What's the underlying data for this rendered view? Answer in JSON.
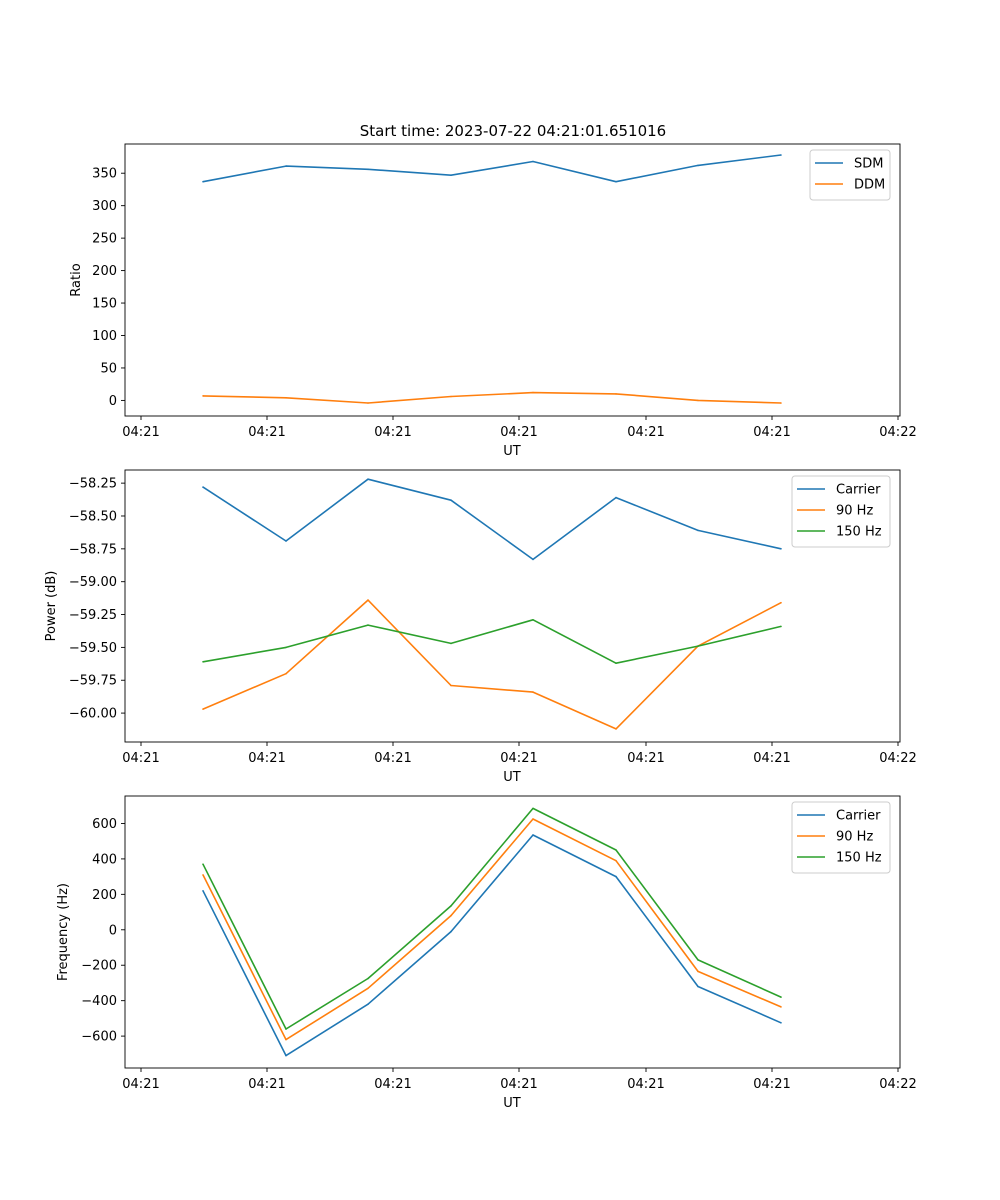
{
  "figure_title": "Start time: 2023-07-22 04:21:01.651016",
  "colors": {
    "blue": "#1f77b4",
    "orange": "#ff7f0e",
    "green": "#2ca02c"
  },
  "chart_data": [
    {
      "type": "line",
      "title": "Start time: 2023-07-22 04:21:01.651016",
      "xlabel": "UT",
      "ylabel": "Ratio",
      "x_tick_labels": [
        "04:21",
        "04:21",
        "04:21",
        "04:21",
        "04:21",
        "04:21",
        "04:22"
      ],
      "y_ticks": [
        0,
        50,
        100,
        150,
        200,
        250,
        300,
        350
      ],
      "y_tick_labels": [
        "0",
        "50",
        "100",
        "150",
        "200",
        "250",
        "300",
        "350"
      ],
      "ylim": [
        -24,
        395
      ],
      "legend_position": "top-right",
      "series": [
        {
          "name": "SDM",
          "color": "#1f77b4",
          "values": [
            337,
            361,
            356,
            347,
            368,
            337,
            362,
            378
          ]
        },
        {
          "name": "DDM",
          "color": "#ff7f0e",
          "values": [
            7,
            4,
            -4,
            6,
            12,
            10,
            0,
            -4
          ]
        }
      ]
    },
    {
      "type": "line",
      "title": "",
      "xlabel": "UT",
      "ylabel": "Power (dB)",
      "x_tick_labels": [
        "04:21",
        "04:21",
        "04:21",
        "04:21",
        "04:21",
        "04:21",
        "04:22"
      ],
      "y_ticks": [
        -58.25,
        -58.5,
        -58.75,
        -59.0,
        -59.25,
        -59.5,
        -59.75,
        -60.0
      ],
      "y_tick_labels": [
        "−58.25",
        "−58.50",
        "−58.75",
        "−59.00",
        "−59.25",
        "−59.50",
        "−59.75",
        "−60.00"
      ],
      "ylim": [
        -60.22,
        -58.15
      ],
      "legend_position": "top-right",
      "series": [
        {
          "name": "Carrier",
          "color": "#1f77b4",
          "values": [
            -58.28,
            -58.69,
            -58.22,
            -58.38,
            -58.83,
            -58.36,
            -58.61,
            -58.75
          ]
        },
        {
          "name": "90 Hz",
          "color": "#ff7f0e",
          "values": [
            -59.97,
            -59.7,
            -59.14,
            -59.79,
            -59.84,
            -60.12,
            -59.49,
            -59.16
          ]
        },
        {
          "name": "150 Hz",
          "color": "#2ca02c",
          "values": [
            -59.61,
            -59.5,
            -59.33,
            -59.47,
            -59.29,
            -59.62,
            -59.49,
            -59.34
          ]
        }
      ]
    },
    {
      "type": "line",
      "title": "",
      "xlabel": "UT",
      "ylabel": "Frequency (Hz)",
      "x_tick_labels": [
        "04:21",
        "04:21",
        "04:21",
        "04:21",
        "04:21",
        "04:21",
        "04:22"
      ],
      "y_ticks": [
        600,
        400,
        200,
        0,
        -200,
        -400,
        -600
      ],
      "y_tick_labels": [
        "600",
        "400",
        "200",
        "0",
        "−200",
        "−400",
        "−600"
      ],
      "ylim": [
        -780,
        755
      ],
      "legend_position": "top-right",
      "series": [
        {
          "name": "Carrier",
          "color": "#1f77b4",
          "values": [
            220,
            -710,
            -420,
            -10,
            535,
            300,
            -320,
            -525
          ]
        },
        {
          "name": "90 Hz",
          "color": "#ff7f0e",
          "values": [
            310,
            -620,
            -330,
            80,
            625,
            390,
            -235,
            -435
          ]
        },
        {
          "name": "150 Hz",
          "color": "#2ca02c",
          "values": [
            370,
            -560,
            -275,
            135,
            685,
            450,
            -170,
            -380
          ]
        }
      ]
    }
  ]
}
